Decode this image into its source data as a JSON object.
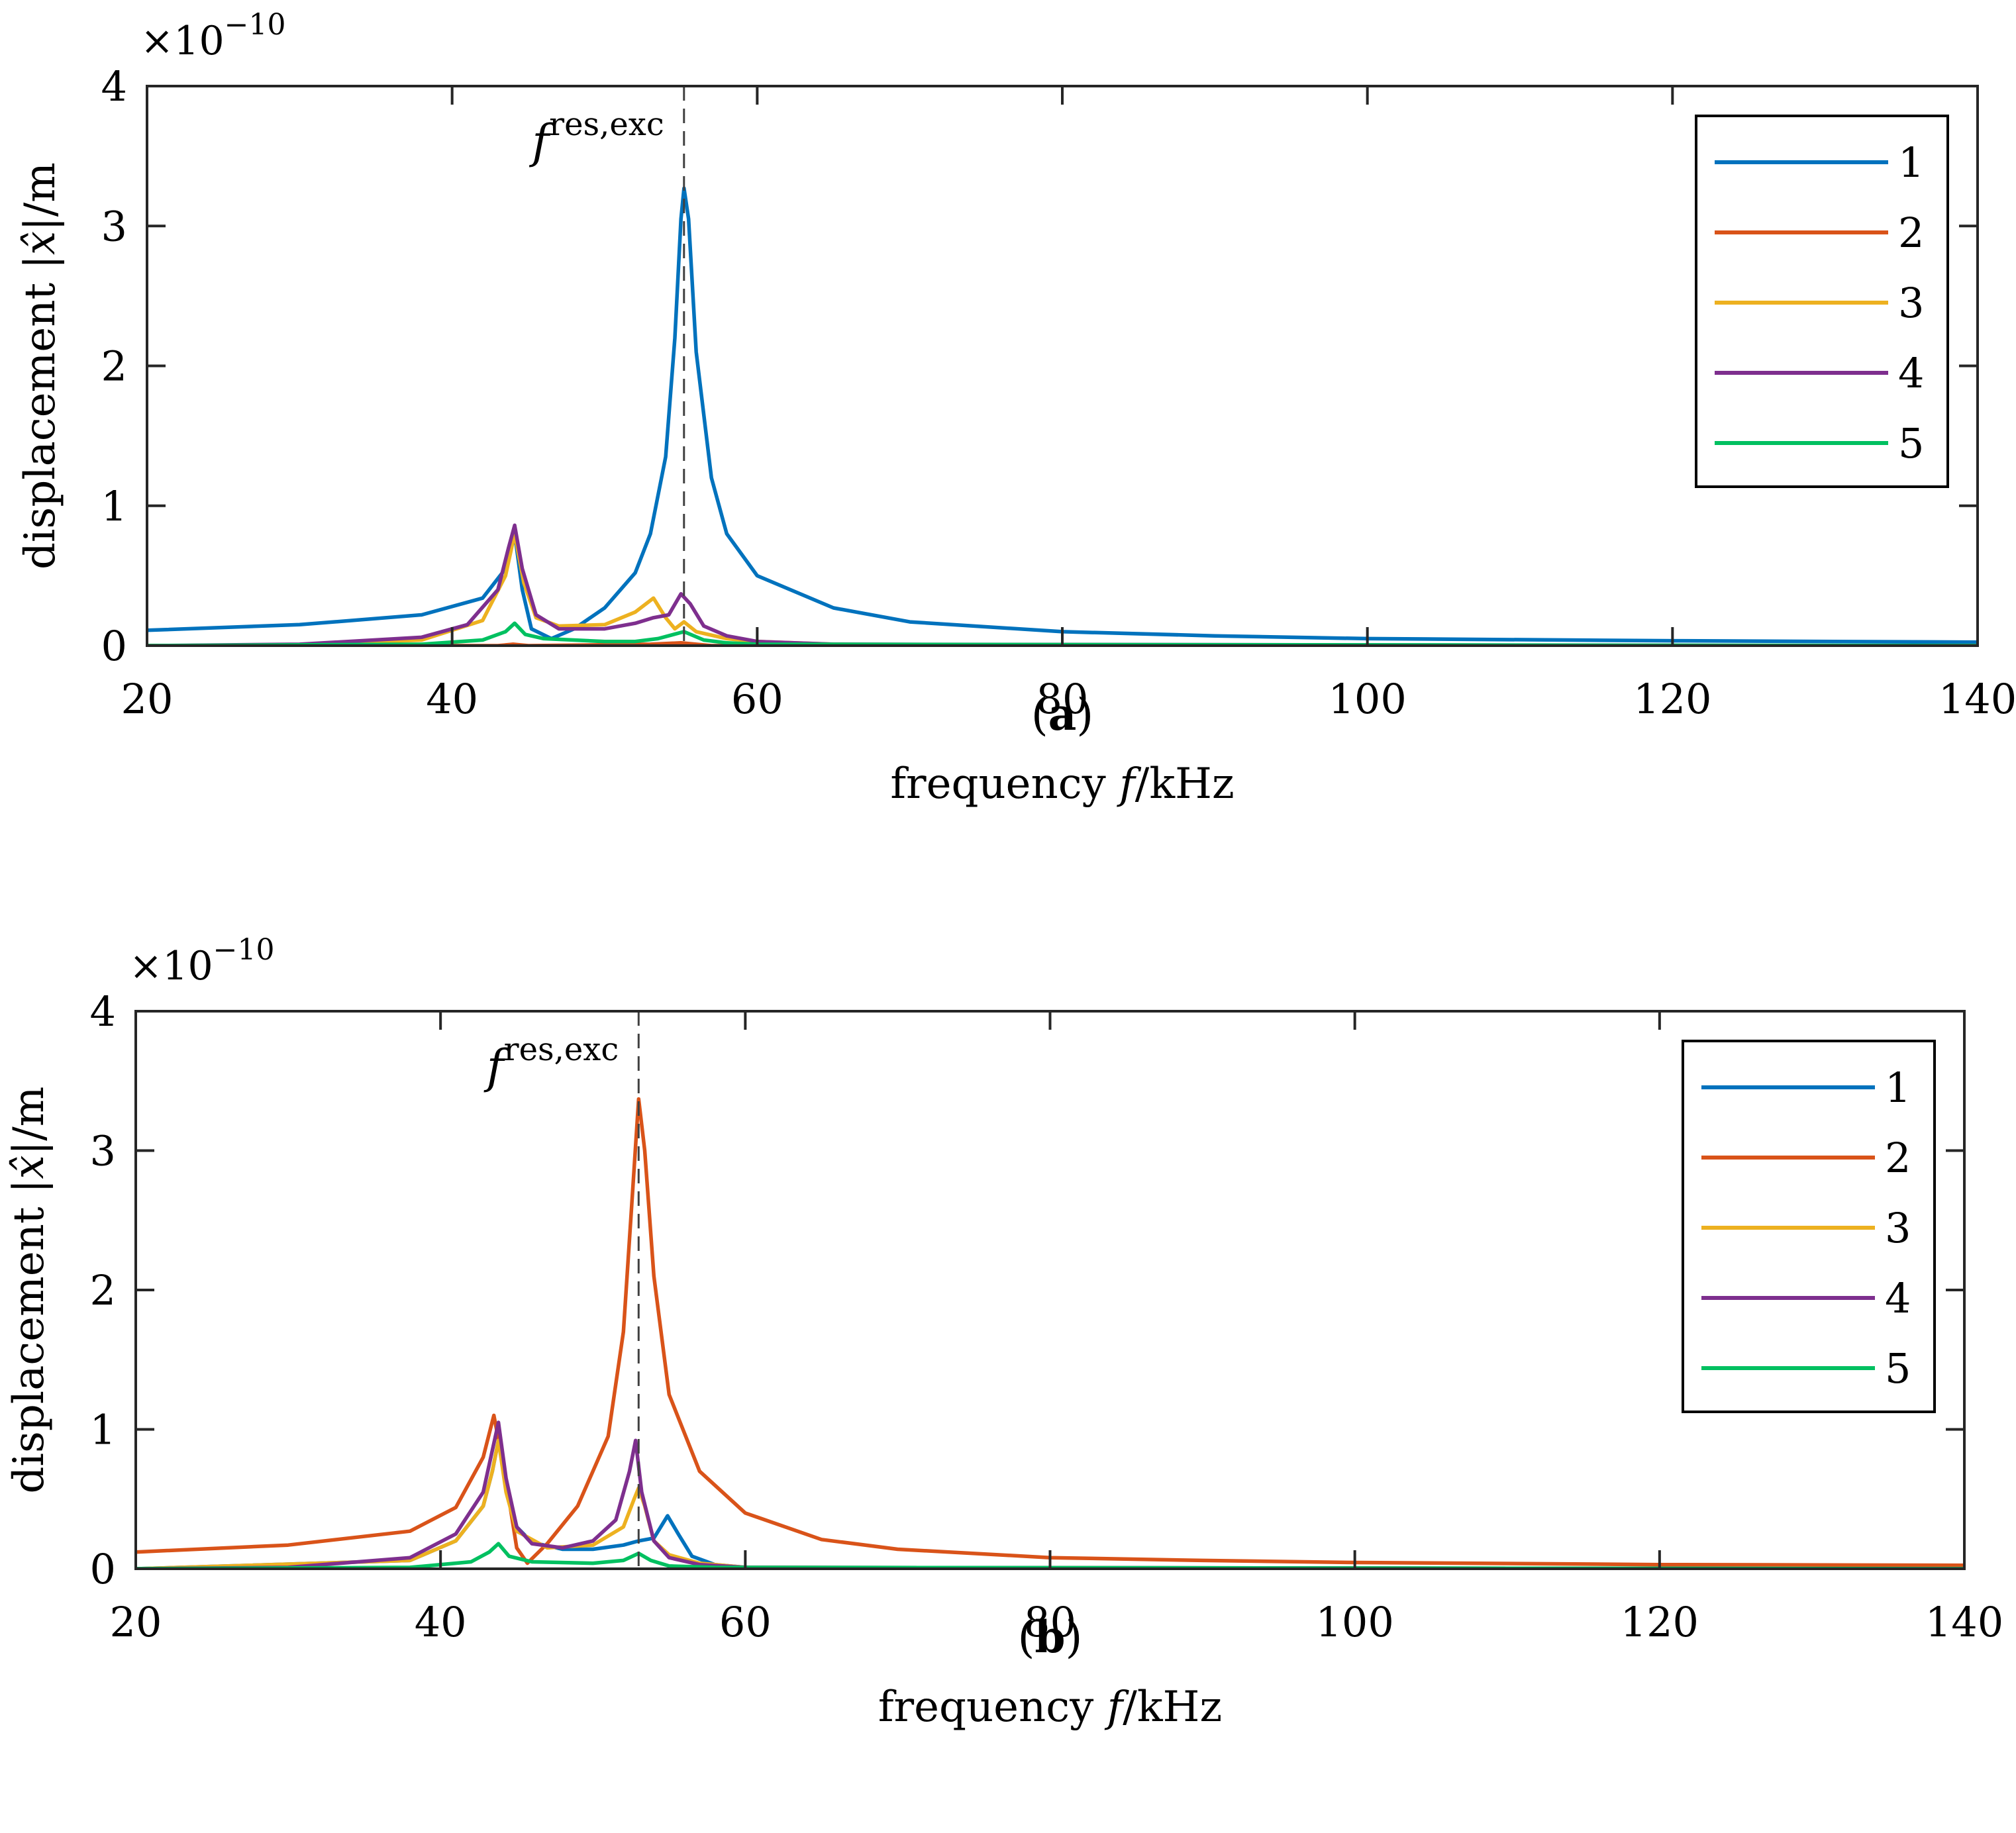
{
  "chart_data": [
    {
      "type": "line",
      "caption_letter": "a",
      "xlabel_prefix": "frequency ",
      "xlabel_var": "f",
      "xlabel_unit": "/kHz",
      "ylabel_prefix": "displacement ",
      "ylabel_var": "|x̂|",
      "ylabel_unit": "/m",
      "y_scale_base": "×10",
      "y_scale_exp": "−10",
      "xlim": [
        20,
        140
      ],
      "ylim": [
        0,
        4
      ],
      "xticks": [
        "20",
        "40",
        "60",
        "80",
        "100",
        "120",
        "140"
      ],
      "yticks": [
        "0",
        "1",
        "2",
        "3",
        "4"
      ],
      "annotation_base": "f",
      "annotation_sup": "res,exc",
      "annotation_x": 55.2,
      "legend_position": "top-right",
      "series": [
        {
          "name": "1",
          "color": "#0072BD",
          "points": [
            [
              20,
              0.11
            ],
            [
              30,
              0.15
            ],
            [
              38,
              0.22
            ],
            [
              42,
              0.34
            ],
            [
              43.5,
              0.55
            ],
            [
              44.1,
              0.8
            ],
            [
              44.6,
              0.4
            ],
            [
              45.2,
              0.12
            ],
            [
              46.5,
              0.05
            ],
            [
              48,
              0.12
            ],
            [
              50,
              0.27
            ],
            [
              52,
              0.52
            ],
            [
              53,
              0.8
            ],
            [
              54,
              1.35
            ],
            [
              54.6,
              2.2
            ],
            [
              55.0,
              3.05
            ],
            [
              55.2,
              3.27
            ],
            [
              55.5,
              3.05
            ],
            [
              56,
              2.1
            ],
            [
              57,
              1.2
            ],
            [
              58,
              0.8
            ],
            [
              60,
              0.5
            ],
            [
              65,
              0.27
            ],
            [
              70,
              0.17
            ],
            [
              80,
              0.1
            ],
            [
              90,
              0.07
            ],
            [
              100,
              0.05
            ],
            [
              120,
              0.035
            ],
            [
              140,
              0.025
            ]
          ]
        },
        {
          "name": "2",
          "color": "#D95319",
          "points": [
            [
              20,
              0.0
            ],
            [
              43,
              0.0
            ],
            [
              44,
              0.01
            ],
            [
              45,
              0.0
            ],
            [
              53,
              0.01
            ],
            [
              55,
              0.02
            ],
            [
              57,
              0.0
            ],
            [
              140,
              0.0
            ]
          ]
        },
        {
          "name": "3",
          "color": "#EDB120",
          "points": [
            [
              20,
              0.0
            ],
            [
              30,
              0.005
            ],
            [
              38,
              0.04
            ],
            [
              42,
              0.18
            ],
            [
              43.5,
              0.5
            ],
            [
              44.1,
              0.8
            ],
            [
              44.7,
              0.45
            ],
            [
              45.5,
              0.2
            ],
            [
              47,
              0.14
            ],
            [
              50,
              0.15
            ],
            [
              52,
              0.24
            ],
            [
              53.2,
              0.34
            ],
            [
              54,
              0.2
            ],
            [
              54.6,
              0.12
            ],
            [
              55.2,
              0.17
            ],
            [
              56,
              0.1
            ],
            [
              58,
              0.05
            ],
            [
              60,
              0.03
            ],
            [
              65,
              0.01
            ],
            [
              70,
              0.004
            ],
            [
              140,
              0.0
            ]
          ]
        },
        {
          "name": "4",
          "color": "#7E2F8E",
          "points": [
            [
              20,
              0.0
            ],
            [
              30,
              0.01
            ],
            [
              38,
              0.06
            ],
            [
              41,
              0.15
            ],
            [
              43,
              0.4
            ],
            [
              43.7,
              0.7
            ],
            [
              44.1,
              0.86
            ],
            [
              44.6,
              0.55
            ],
            [
              45.5,
              0.22
            ],
            [
              47,
              0.12
            ],
            [
              50,
              0.12
            ],
            [
              52,
              0.16
            ],
            [
              53.2,
              0.2
            ],
            [
              54.2,
              0.22
            ],
            [
              55.0,
              0.37
            ],
            [
              55.6,
              0.3
            ],
            [
              56.5,
              0.14
            ],
            [
              58,
              0.07
            ],
            [
              60,
              0.03
            ],
            [
              65,
              0.01
            ],
            [
              140,
              0.0
            ]
          ]
        },
        {
          "name": "5",
          "color": "#00C060",
          "points": [
            [
              20,
              0.0
            ],
            [
              38,
              0.01
            ],
            [
              42,
              0.04
            ],
            [
              43.5,
              0.1
            ],
            [
              44.1,
              0.16
            ],
            [
              44.8,
              0.08
            ],
            [
              46,
              0.05
            ],
            [
              50,
              0.03
            ],
            [
              52,
              0.03
            ],
            [
              53.5,
              0.05
            ],
            [
              55.2,
              0.1
            ],
            [
              56.5,
              0.04
            ],
            [
              58,
              0.02
            ],
            [
              60,
              0.01
            ],
            [
              140,
              0.0
            ]
          ]
        }
      ]
    },
    {
      "type": "line",
      "caption_letter": "b",
      "xlabel_prefix": "frequency ",
      "xlabel_var": "f",
      "xlabel_unit": "/kHz",
      "ylabel_prefix": "displacement ",
      "ylabel_var": "|x̂|",
      "ylabel_unit": "/m",
      "y_scale_base": "×10",
      "y_scale_exp": "−10",
      "xlim": [
        20,
        140
      ],
      "ylim": [
        0,
        4
      ],
      "xticks": [
        "20",
        "40",
        "60",
        "80",
        "100",
        "120",
        "140"
      ],
      "yticks": [
        "0",
        "1",
        "2",
        "3",
        "4"
      ],
      "annotation_base": "f",
      "annotation_sup": "res,exc",
      "annotation_x": 53.0,
      "legend_position": "top-right",
      "series": [
        {
          "name": "1",
          "color": "#0072BD",
          "points": [
            [
              20,
              0.0
            ],
            [
              38,
              0.06
            ],
            [
              41,
              0.2
            ],
            [
              42.8,
              0.45
            ],
            [
              43.4,
              0.7
            ],
            [
              43.8,
              0.92
            ],
            [
              44.3,
              0.6
            ],
            [
              45,
              0.3
            ],
            [
              46,
              0.19
            ],
            [
              48,
              0.14
            ],
            [
              50,
              0.14
            ],
            [
              52,
              0.17
            ],
            [
              53,
              0.2
            ],
            [
              54,
              0.22
            ],
            [
              54.9,
              0.38
            ],
            [
              55.6,
              0.25
            ],
            [
              56.5,
              0.09
            ],
            [
              58,
              0.03
            ],
            [
              60,
              0.01
            ],
            [
              140,
              0.0
            ]
          ]
        },
        {
          "name": "2",
          "color": "#D95319",
          "points": [
            [
              20,
              0.12
            ],
            [
              30,
              0.17
            ],
            [
              38,
              0.27
            ],
            [
              41,
              0.44
            ],
            [
              42.8,
              0.8
            ],
            [
              43.5,
              1.1
            ],
            [
              44.2,
              0.7
            ],
            [
              45,
              0.15
            ],
            [
              45.7,
              0.04
            ],
            [
              47,
              0.18
            ],
            [
              49,
              0.45
            ],
            [
              51,
              0.95
            ],
            [
              52,
              1.7
            ],
            [
              52.6,
              2.7
            ],
            [
              53.0,
              3.37
            ],
            [
              53.4,
              3.0
            ],
            [
              54,
              2.1
            ],
            [
              55,
              1.25
            ],
            [
              57,
              0.7
            ],
            [
              60,
              0.4
            ],
            [
              65,
              0.21
            ],
            [
              70,
              0.14
            ],
            [
              80,
              0.08
            ],
            [
              90,
              0.06
            ],
            [
              100,
              0.045
            ],
            [
              120,
              0.03
            ],
            [
              140,
              0.025
            ]
          ]
        },
        {
          "name": "3",
          "color": "#EDB120",
          "points": [
            [
              20,
              0.0
            ],
            [
              38,
              0.06
            ],
            [
              41,
              0.2
            ],
            [
              42.8,
              0.45
            ],
            [
              43.4,
              0.7
            ],
            [
              43.8,
              0.92
            ],
            [
              44.3,
              0.55
            ],
            [
              45,
              0.27
            ],
            [
              47,
              0.15
            ],
            [
              50,
              0.17
            ],
            [
              52,
              0.3
            ],
            [
              52.7,
              0.5
            ],
            [
              53.0,
              0.58
            ],
            [
              53.4,
              0.45
            ],
            [
              54,
              0.2
            ],
            [
              55,
              0.1
            ],
            [
              57,
              0.04
            ],
            [
              60,
              0.01
            ],
            [
              140,
              0.0
            ]
          ]
        },
        {
          "name": "4",
          "color": "#7E2F8E",
          "points": [
            [
              20,
              0.0
            ],
            [
              30,
              0.01
            ],
            [
              38,
              0.08
            ],
            [
              41,
              0.25
            ],
            [
              42.8,
              0.55
            ],
            [
              43.4,
              0.85
            ],
            [
              43.8,
              1.05
            ],
            [
              44.3,
              0.65
            ],
            [
              45,
              0.3
            ],
            [
              46,
              0.18
            ],
            [
              48,
              0.15
            ],
            [
              50,
              0.2
            ],
            [
              51.5,
              0.35
            ],
            [
              52.4,
              0.7
            ],
            [
              52.8,
              0.92
            ],
            [
              53.2,
              0.55
            ],
            [
              54,
              0.2
            ],
            [
              55,
              0.08
            ],
            [
              57,
              0.03
            ],
            [
              60,
              0.01
            ],
            [
              140,
              0.0
            ]
          ]
        },
        {
          "name": "5",
          "color": "#00C060",
          "points": [
            [
              20,
              0.0
            ],
            [
              38,
              0.01
            ],
            [
              42,
              0.05
            ],
            [
              43.2,
              0.12
            ],
            [
              43.8,
              0.18
            ],
            [
              44.5,
              0.09
            ],
            [
              46,
              0.05
            ],
            [
              50,
              0.04
            ],
            [
              52,
              0.06
            ],
            [
              53.0,
              0.11
            ],
            [
              53.8,
              0.06
            ],
            [
              55,
              0.02
            ],
            [
              58,
              0.01
            ],
            [
              140,
              0.0
            ]
          ]
        }
      ]
    }
  ]
}
